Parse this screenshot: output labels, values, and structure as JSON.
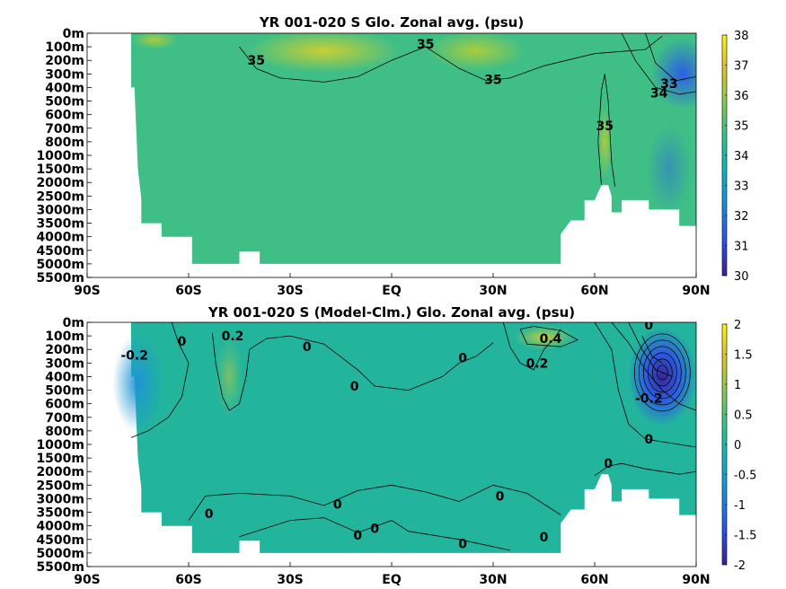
{
  "chart_data": [
    {
      "type": "heatmap",
      "title": "YR 001-020 S Glo. Zonal avg. (psu)",
      "x_ticks": [
        "90S",
        "60S",
        "30S",
        "EQ",
        "30N",
        "60N",
        "90N"
      ],
      "y_ticks": [
        "0m",
        "100m",
        "200m",
        "300m",
        "400m",
        "500m",
        "600m",
        "700m",
        "800m",
        "1000m",
        "1500m",
        "2000m",
        "2500m",
        "3000m",
        "3500m",
        "4000m",
        "4500m",
        "5000m",
        "5500m"
      ],
      "colorbar": {
        "min": 30,
        "max": 38,
        "ticks": [
          "30",
          "31",
          "32",
          "33",
          "34",
          "35",
          "36",
          "37",
          "38"
        ]
      },
      "contour_labels": [
        {
          "text": "35",
          "lat": -40,
          "depth_index": 2.0
        },
        {
          "text": "35",
          "lat": 10,
          "depth_index": 0.8
        },
        {
          "text": "35",
          "lat": 30,
          "depth_index": 3.4
        },
        {
          "text": "35",
          "lat": 63,
          "depth_index": 6.8
        },
        {
          "text": "33",
          "lat": 82,
          "depth_index": 3.7
        },
        {
          "text": "34",
          "lat": 79,
          "depth_index": 4.4
        }
      ],
      "colors": {
        "fill_main": "#3fbf86",
        "fill_high": "#b9cf3c",
        "fill_low": "#2f73d8"
      }
    },
    {
      "type": "heatmap",
      "title": "YR 001-020 S (Model-Clm.) Glo. Zonal avg. (psu)",
      "x_ticks": [
        "90S",
        "60S",
        "30S",
        "EQ",
        "30N",
        "60N",
        "90N"
      ],
      "y_ticks": [
        "0m",
        "100m",
        "200m",
        "300m",
        "400m",
        "500m",
        "600m",
        "700m",
        "800m",
        "1000m",
        "1500m",
        "2000m",
        "2500m",
        "3000m",
        "3500m",
        "4000m",
        "4500m",
        "5000m",
        "5500m"
      ],
      "colorbar": {
        "min": -2,
        "max": 2,
        "ticks": [
          "-2",
          "-1.5",
          "-1",
          "-0.5",
          "0",
          "0.5",
          "1",
          "1.5",
          "2"
        ]
      },
      "contour_labels": [
        {
          "text": "-0.2",
          "lat": -76,
          "depth_index": 2.4
        },
        {
          "text": "0",
          "lat": -62,
          "depth_index": 1.4
        },
        {
          "text": "0.2",
          "lat": -47,
          "depth_index": 1.0
        },
        {
          "text": "0",
          "lat": -25,
          "depth_index": 1.8
        },
        {
          "text": "0",
          "lat": -11,
          "depth_index": 4.7
        },
        {
          "text": "0",
          "lat": 21,
          "depth_index": 2.6
        },
        {
          "text": "0.4",
          "lat": 47,
          "depth_index": 1.2
        },
        {
          "text": "0.2",
          "lat": 43,
          "depth_index": 3.0
        },
        {
          "text": "0",
          "lat": 76,
          "depth_index": 0.2
        },
        {
          "text": "-0.2",
          "lat": 76,
          "depth_index": 5.6
        },
        {
          "text": "0",
          "lat": 76,
          "depth_index": 8.6
        },
        {
          "text": "0",
          "lat": 64,
          "depth_index": 10.4
        },
        {
          "text": "0",
          "lat": -54,
          "depth_index": 14.1
        },
        {
          "text": "0",
          "lat": -16,
          "depth_index": 13.4
        },
        {
          "text": "0",
          "lat": -5,
          "depth_index": 15.2
        },
        {
          "text": "0",
          "lat": -10,
          "depth_index": 15.7
        },
        {
          "text": "0",
          "lat": 32,
          "depth_index": 12.8
        },
        {
          "text": "0",
          "lat": 21,
          "depth_index": 16.3
        },
        {
          "text": "0",
          "lat": 45,
          "depth_index": 15.8
        }
      ],
      "colors": {
        "fill_main": "#22b49d",
        "fill_high": "#8fcb58",
        "fill_low": "#2c5fe0"
      }
    }
  ]
}
